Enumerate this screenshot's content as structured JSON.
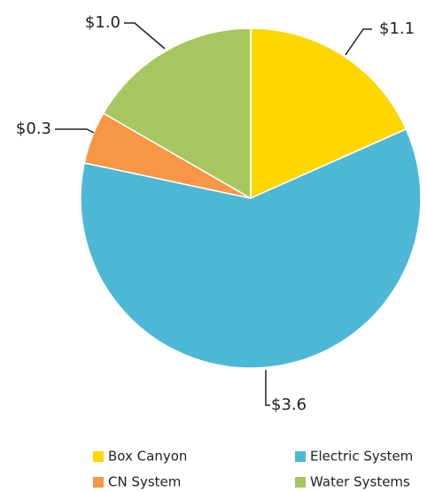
{
  "chart_data": {
    "type": "pie",
    "categories": [
      "Box Canyon",
      "Electric System",
      "CN System",
      "Water Systems"
    ],
    "values": [
      1.1,
      3.6,
      0.3,
      1.0
    ],
    "data_labels": [
      "$1.1",
      "$3.6",
      "$0.3",
      "$1.0"
    ],
    "colors": [
      "#FFD700",
      "#4DB8D5",
      "#F79646",
      "#A8C65F"
    ],
    "start_angle_deg": 0,
    "direction": "clockwise",
    "title": "",
    "legend": {
      "placement": "bottom",
      "entries": [
        "Box Canyon",
        "Electric System",
        "CN System",
        "Water Systems"
      ]
    }
  }
}
